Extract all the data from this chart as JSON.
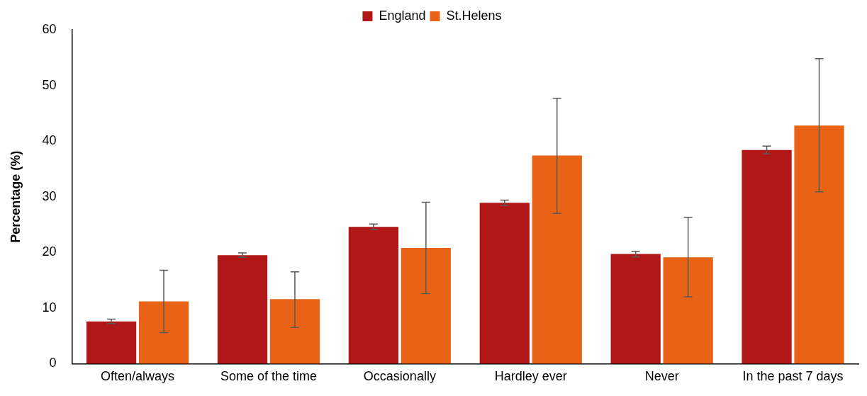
{
  "chart_data": {
    "type": "bar",
    "ylabel": "Percentage (%)",
    "categories": [
      "Often/always",
      "Some of the time",
      "Occasionally",
      "Hardley ever",
      "Never",
      "In the past 7 days"
    ],
    "series": [
      {
        "name": "England",
        "color": "#b01716",
        "values": [
          7.6,
          19.5,
          24.6,
          28.9,
          19.7,
          38.4
        ],
        "errors": [
          0.4,
          0.4,
          0.5,
          0.5,
          0.5,
          0.7
        ]
      },
      {
        "name": "St.Helens",
        "color": "#e86315",
        "values": [
          11.2,
          11.6,
          20.8,
          37.4,
          19.1,
          42.8
        ],
        "errors": [
          [
            5.6,
            16.8
          ],
          [
            6.5,
            16.5
          ],
          [
            12.6,
            29.0
          ],
          [
            27.0,
            47.7
          ],
          [
            12.0,
            26.3
          ],
          [
            30.9,
            54.8
          ]
        ]
      }
    ],
    "ylim": [
      0,
      60
    ],
    "yticks": [
      0,
      10,
      20,
      30,
      40,
      50,
      60
    ],
    "grid": false,
    "legend": "top"
  }
}
